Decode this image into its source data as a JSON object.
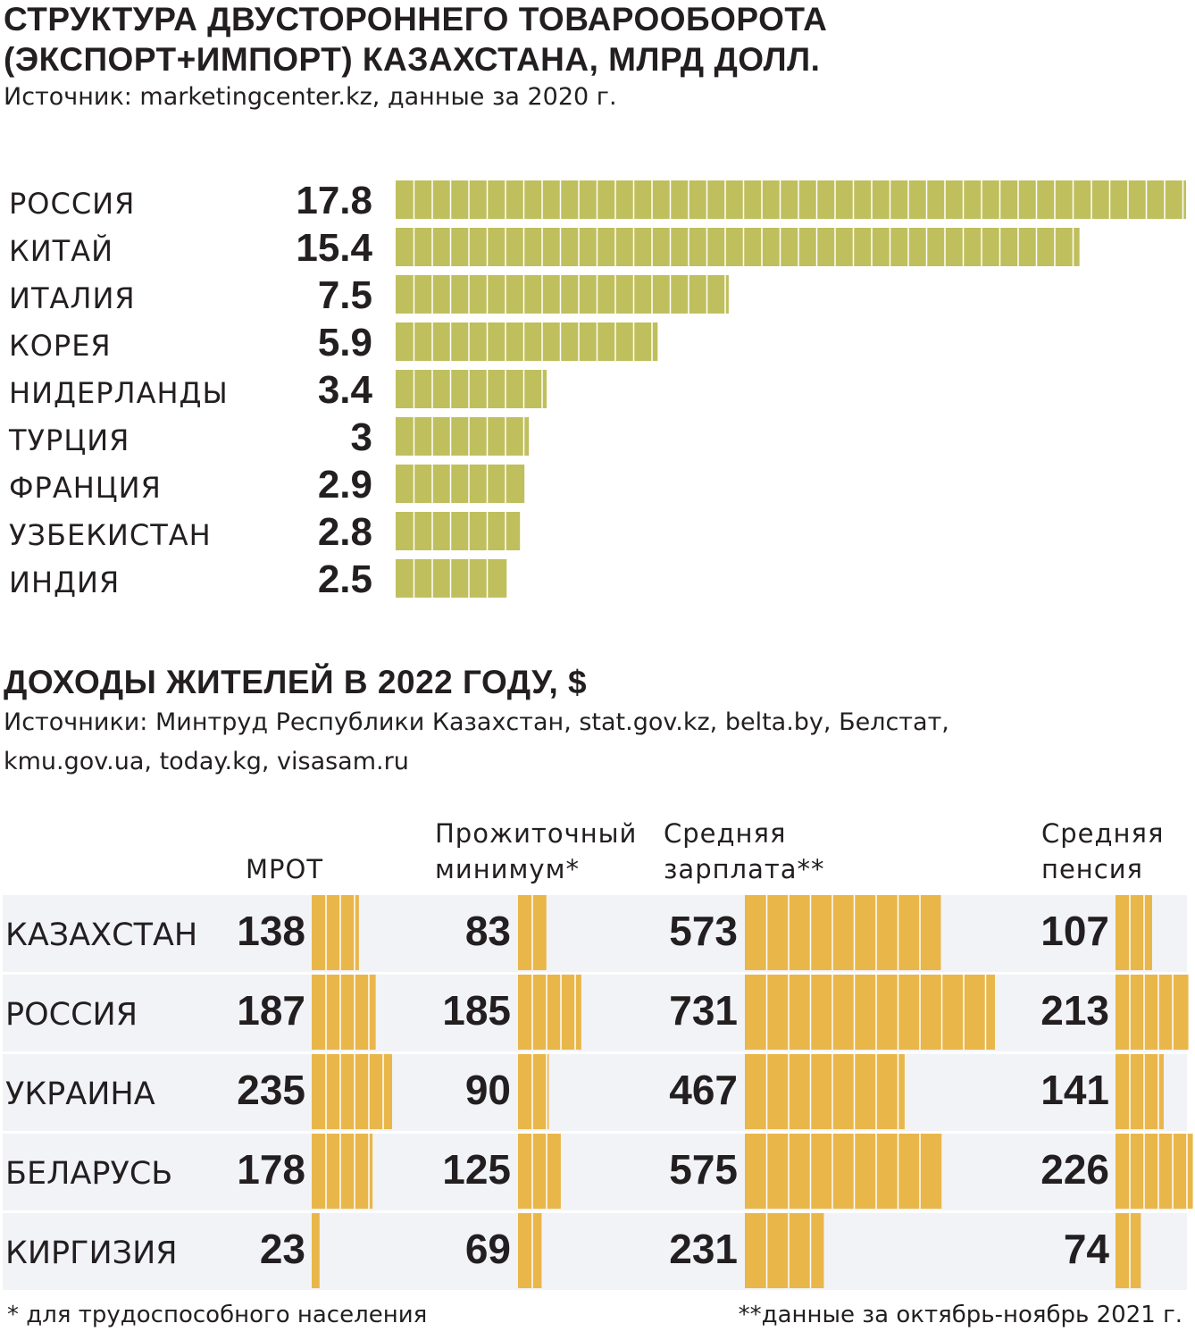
{
  "trade": {
    "title_line1": "СТРУКТУРА ДВУСТОРОННЕГО ТОВАРООБОРОТА",
    "title_line2": "(ЭКСПОРТ+ИМПОРТ) КАЗАХСТАНА, МЛРД ДОЛЛ.",
    "source": "Источник: marketingcenter.kz, данные за 2020 г."
  },
  "income": {
    "title": "ДОХОДЫ ЖИТЕЛЕЙ В 2022 ГОДУ, $",
    "source_line1": "Источники: Минтруд Республики Казахстан, stat.gov.kz, belta.by, Белстат,",
    "source_line2": "kmu.gov.ua, today.kg, visasam.ru",
    "footnote_left": "* для трудоспособного населения",
    "footnote_right": "**данные за октябрь-ноябрь 2021 г."
  },
  "colors": {
    "trade_bar": "#bfbf5e",
    "income_bar": "#e9b64a",
    "row_band": "#f2f3f7",
    "text": "#231f20"
  },
  "chart_data": [
    {
      "type": "bar",
      "orientation": "horizontal",
      "title": "СТРУКТУРА ДВУСТОРОННЕГО ТОВАРООБОРОТА (ЭКСПОРТ+ИМПОРТ) КАЗАХСТАНА, МЛРД ДОЛЛ.",
      "categories": [
        "РОССИЯ",
        "КИТАЙ",
        "ИТАЛИЯ",
        "КОРЕЯ",
        "НИДЕРЛАНДЫ",
        "ТУРЦИЯ",
        "ФРАНЦИЯ",
        "УЗБЕКИСТАН",
        "ИНДИЯ"
      ],
      "values": [
        17.8,
        15.4,
        7.5,
        5.9,
        3.4,
        3,
        2.9,
        2.8,
        2.5
      ],
      "value_labels": [
        "17.8",
        "15.4",
        "7.5",
        "5.9",
        "3.4",
        "3",
        "2.9",
        "2.8",
        "2.5"
      ],
      "xlim": [
        0,
        17.8
      ],
      "grid": false
    },
    {
      "type": "bar",
      "orientation": "horizontal",
      "title": "ДОХОДЫ ЖИТЕЛЕЙ В 2022 ГОДУ, $",
      "categories": [
        "КАЗАХСТАН",
        "РОССИЯ",
        "УКРАИНА",
        "БЕЛАРУСЬ",
        "КИРГИЗИЯ"
      ],
      "series": [
        {
          "name": "МРОТ",
          "header_lines": [
            "МРОТ"
          ],
          "values": [
            138,
            187,
            235,
            178,
            23
          ]
        },
        {
          "name": "Прожиточный минимум*",
          "header_lines": [
            "Прожиточный",
            "минимум*"
          ],
          "values": [
            83,
            185,
            90,
            125,
            69
          ]
        },
        {
          "name": "Средняя зарплата**",
          "header_lines": [
            "Средняя",
            "зарплата**"
          ],
          "values": [
            573,
            731,
            467,
            575,
            231
          ]
        },
        {
          "name": "Средняя пенсия",
          "header_lines": [
            "Средняя",
            "пенсия"
          ],
          "values": [
            107,
            213,
            141,
            226,
            74
          ]
        }
      ],
      "grid": false
    }
  ]
}
